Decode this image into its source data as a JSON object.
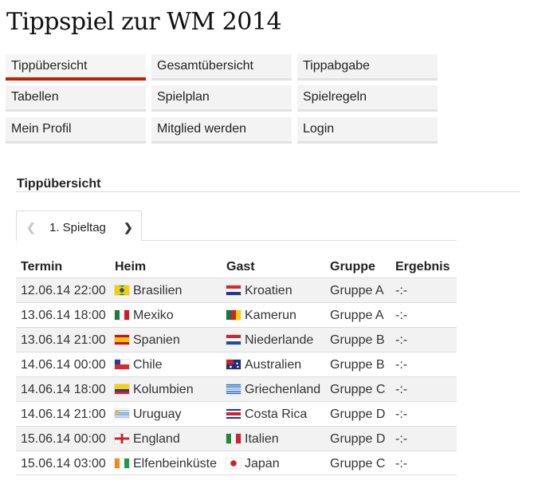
{
  "title": "Tippspiel zur WM 2014",
  "nav": [
    {
      "label": "Tippübersicht",
      "active": true
    },
    {
      "label": "Gesamtübersicht"
    },
    {
      "label": "Tippabgabe"
    },
    {
      "label": "Tabellen"
    },
    {
      "label": "Spielplan"
    },
    {
      "label": "Spielregeln"
    },
    {
      "label": "Mein Profil"
    },
    {
      "label": "Mitglied werden"
    },
    {
      "label": "Login"
    }
  ],
  "section_title": "Tippübersicht",
  "matchday": {
    "label": "1. Spieltag",
    "prev_icon": "chevron-left-icon",
    "next_icon": "chevron-right-icon"
  },
  "table": {
    "headers": {
      "termin": "Termin",
      "heim": "Heim",
      "gast": "Gast",
      "gruppe": "Gruppe",
      "ergebnis": "Ergebnis"
    },
    "rows": [
      {
        "termin": "12.06.14 22:00",
        "heim": "Brasilien",
        "heim_flag": "brazil",
        "gast": "Kroatien",
        "gast_flag": "croatia",
        "gruppe": "Gruppe A",
        "ergebnis": "-:-"
      },
      {
        "termin": "13.06.14 18:00",
        "heim": "Mexiko",
        "heim_flag": "mexico",
        "gast": "Kamerun",
        "gast_flag": "cameroon",
        "gruppe": "Gruppe A",
        "ergebnis": "-:-"
      },
      {
        "termin": "13.06.14 21:00",
        "heim": "Spanien",
        "heim_flag": "spain",
        "gast": "Niederlande",
        "gast_flag": "netherlands",
        "gruppe": "Gruppe B",
        "ergebnis": "-:-"
      },
      {
        "termin": "14.06.14 00:00",
        "heim": "Chile",
        "heim_flag": "chile",
        "gast": "Australien",
        "gast_flag": "australia",
        "gruppe": "Gruppe B",
        "ergebnis": "-:-"
      },
      {
        "termin": "14.06.14 18:00",
        "heim": "Kolumbien",
        "heim_flag": "colombia",
        "gast": "Griechenland",
        "gast_flag": "greece",
        "gruppe": "Gruppe C",
        "ergebnis": "-:-"
      },
      {
        "termin": "14.06.14 21:00",
        "heim": "Uruguay",
        "heim_flag": "uruguay",
        "gast": "Costa Rica",
        "gast_flag": "costa-rica",
        "gruppe": "Gruppe D",
        "ergebnis": "-:-"
      },
      {
        "termin": "15.06.14 00:00",
        "heim": "England",
        "heim_flag": "england",
        "gast": "Italien",
        "gast_flag": "italy",
        "gruppe": "Gruppe D",
        "ergebnis": "-:-"
      },
      {
        "termin": "15.06.14 03:00",
        "heim": "Elfenbeinküste",
        "heim_flag": "ivory-coast",
        "gast": "Japan",
        "gast_flag": "japan",
        "gruppe": "Gruppe C",
        "ergebnis": "-:-"
      }
    ]
  },
  "colors": {
    "accent": "#c42000",
    "nav_bg": "#f3f3f3",
    "row_alt": "#f2f2f2",
    "border": "#dddddd"
  }
}
